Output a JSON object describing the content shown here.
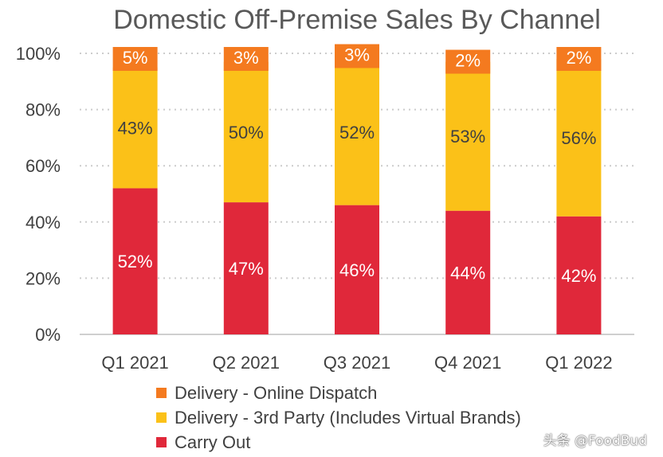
{
  "chart_data": {
    "type": "bar",
    "stacked": true,
    "title": "Domestic Off-Premise Sales By Channel",
    "categories": [
      "Q1 2021",
      "Q2 2021",
      "Q3 2021",
      "Q4 2021",
      "Q1 2022"
    ],
    "series": [
      {
        "name": "Carry Out",
        "color": "#e0283a",
        "values": [
          52,
          47,
          46,
          44,
          42
        ],
        "labels": [
          "52%",
          "47%",
          "46%",
          "44%",
          "42%"
        ]
      },
      {
        "name": "Delivery - 3rd Party (Includes Virtual Brands)",
        "color": "#fbc118",
        "values": [
          43,
          50,
          52,
          53,
          56
        ],
        "labels": [
          "43%",
          "50%",
          "52%",
          "53%",
          "56%"
        ]
      },
      {
        "name": "Delivery - Online Dispatch",
        "color": "#f47a1f",
        "values": [
          5,
          3,
          3,
          2,
          2
        ],
        "labels": [
          "5%",
          "3%",
          "3%",
          "2%",
          "2%"
        ]
      }
    ],
    "y_ticks": [
      "0%",
      "20%",
      "40%",
      "60%",
      "80%",
      "100%"
    ],
    "ylim": [
      0,
      100
    ],
    "grid": true,
    "legend": [
      "Delivery - Online Dispatch",
      "Delivery - 3rd Party (Includes Virtual Brands)",
      "Carry Out"
    ]
  },
  "watermark": "头条 @FoodBud"
}
